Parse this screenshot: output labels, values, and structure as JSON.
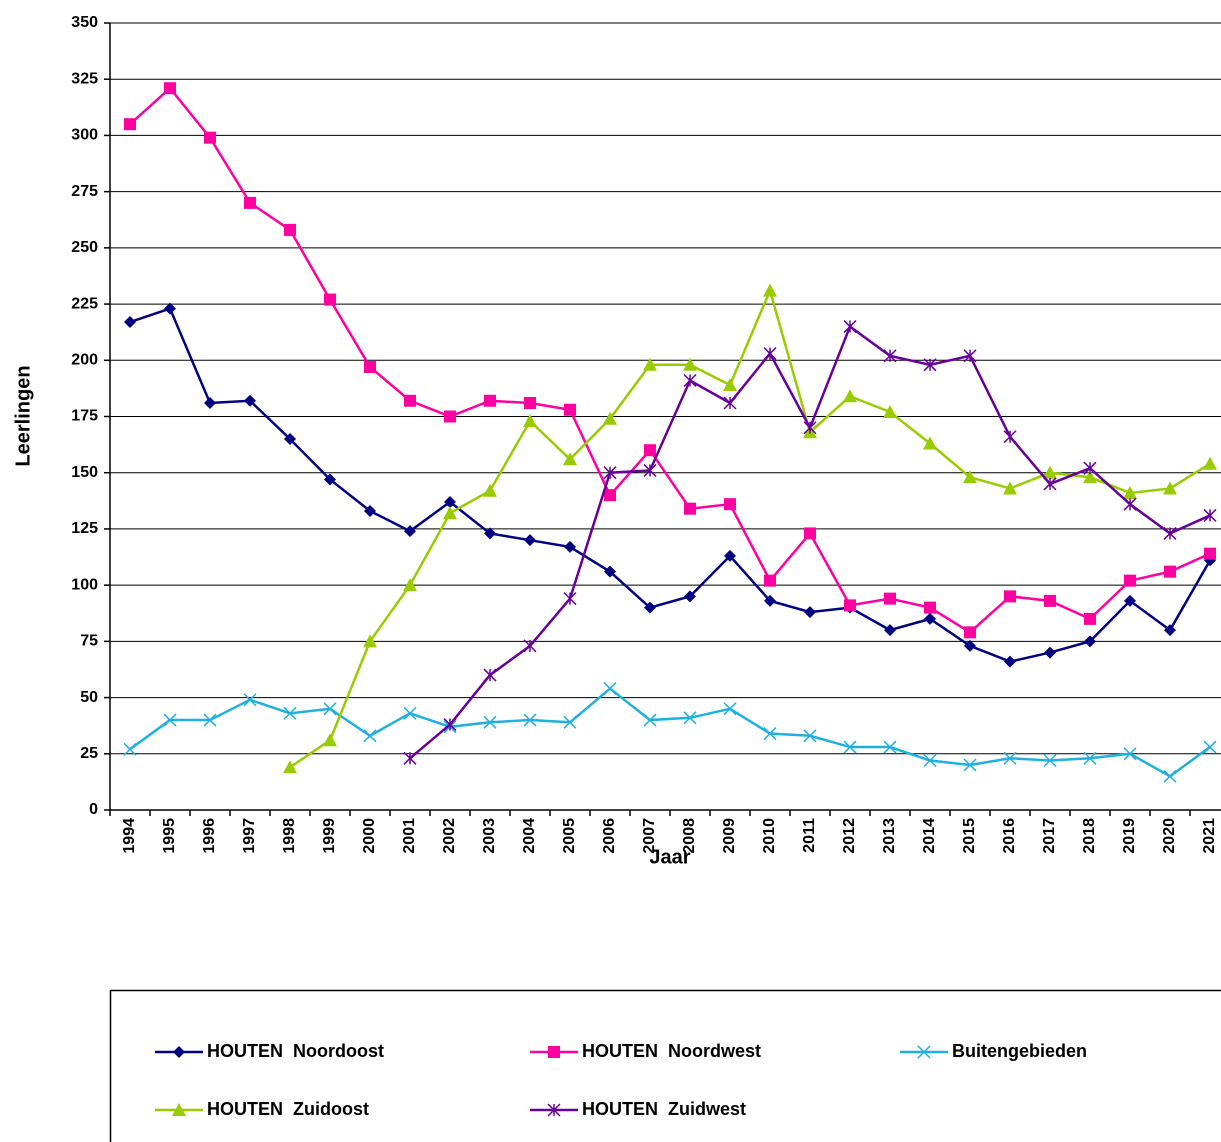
{
  "chart_data": {
    "type": "line",
    "x_label": "Jaar",
    "y_label": "Leerlingen",
    "x": [
      1994,
      1995,
      1996,
      1997,
      1998,
      1999,
      2000,
      2001,
      2002,
      2003,
      2004,
      2005,
      2006,
      2007,
      2008,
      2009,
      2010,
      2011,
      2012,
      2013,
      2014,
      2015,
      2016,
      2017,
      2018,
      2019,
      2020,
      2021
    ],
    "ylim": [
      0,
      350
    ],
    "yticks": [
      0,
      25,
      50,
      75,
      100,
      125,
      150,
      175,
      200,
      225,
      250,
      275,
      300,
      325,
      350
    ],
    "grid": true,
    "series": [
      {
        "name": "HOUTEN  Noordoost",
        "color": "#000080",
        "marker": "diamond",
        "values": [
          217,
          223,
          181,
          182,
          165,
          147,
          133,
          124,
          137,
          123,
          120,
          117,
          106,
          90,
          95,
          113,
          93,
          88,
          90,
          80,
          85,
          73,
          66,
          70,
          75,
          93,
          80,
          111
        ]
      },
      {
        "name": "HOUTEN  Noordwest",
        "color": "#ff00a0",
        "marker": "square",
        "values": [
          305,
          321,
          299,
          270,
          258,
          227,
          197,
          182,
          175,
          182,
          181,
          178,
          140,
          160,
          134,
          136,
          102,
          123,
          91,
          94,
          90,
          79,
          95,
          93,
          85,
          102,
          106,
          114
        ]
      },
      {
        "name": "Buitengebieden",
        "color": "#20b0e0",
        "marker": "x",
        "values": [
          27,
          40,
          40,
          49,
          43,
          45,
          33,
          43,
          37,
          39,
          40,
          39,
          54,
          40,
          41,
          45,
          34,
          33,
          28,
          28,
          22,
          20,
          23,
          22,
          23,
          25,
          15,
          28
        ]
      },
      {
        "name": "HOUTEN  Zuidoost",
        "color": "#99cc00",
        "marker": "triangle",
        "values": [
          null,
          null,
          null,
          null,
          19,
          31,
          75,
          100,
          132,
          142,
          173,
          156,
          174,
          198,
          198,
          189,
          231,
          168,
          184,
          177,
          163,
          148,
          143,
          150,
          148,
          141,
          143,
          154
        ]
      },
      {
        "name": "HOUTEN  Zuidwest",
        "color": "#660099",
        "marker": "star",
        "values": [
          null,
          null,
          null,
          null,
          null,
          null,
          null,
          23,
          38,
          60,
          73,
          94,
          150,
          151,
          191,
          181,
          203,
          170,
          215,
          202,
          198,
          202,
          166,
          145,
          152,
          136,
          123,
          131
        ]
      }
    ]
  }
}
